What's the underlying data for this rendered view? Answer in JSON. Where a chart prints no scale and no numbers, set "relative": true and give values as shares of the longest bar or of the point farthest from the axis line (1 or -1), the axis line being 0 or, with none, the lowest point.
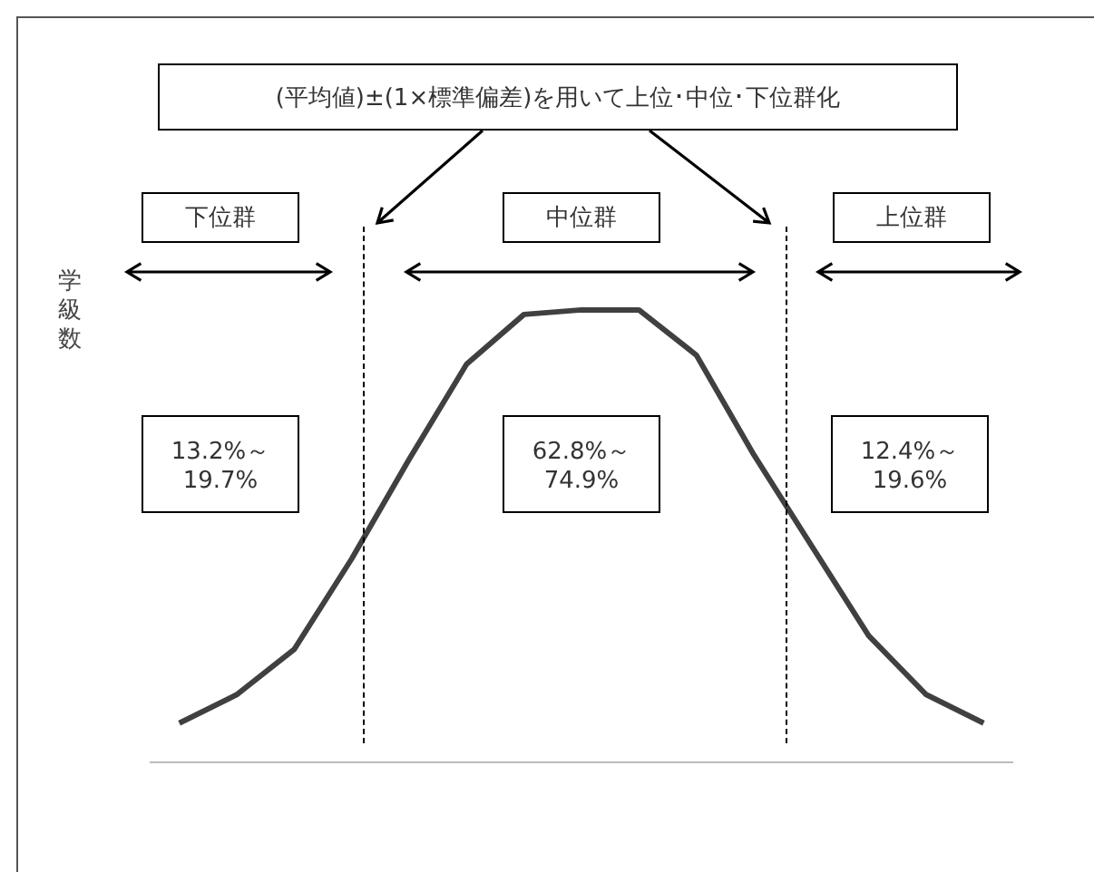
{
  "chart_data": {
    "type": "line",
    "relative": true,
    "ylabel": "学級数",
    "marker": "none",
    "grid": false,
    "legend": false,
    "categories": [
      null,
      null,
      null,
      null,
      null,
      null,
      null,
      null,
      null,
      null,
      null,
      null,
      null,
      null,
      null
    ],
    "series": [
      {
        "color": "#404040",
        "values": [
          0.087,
          0.15,
          0.25,
          0.45,
          0.67,
          0.88,
          0.99,
          1,
          1,
          0.9,
          0.68,
          0.48,
          0.28,
          0.15,
          0.087
        ]
      }
    ],
    "annotations": [
      "(平均値)±(1×標準偏差)を用いて上位･中位･下位群化",
      "下位群",
      "中位群",
      "上位群",
      "13.2%～\n19.7%",
      "62.8%～\n74.9%",
      "12.4%～\n19.6%"
    ]
  }
}
